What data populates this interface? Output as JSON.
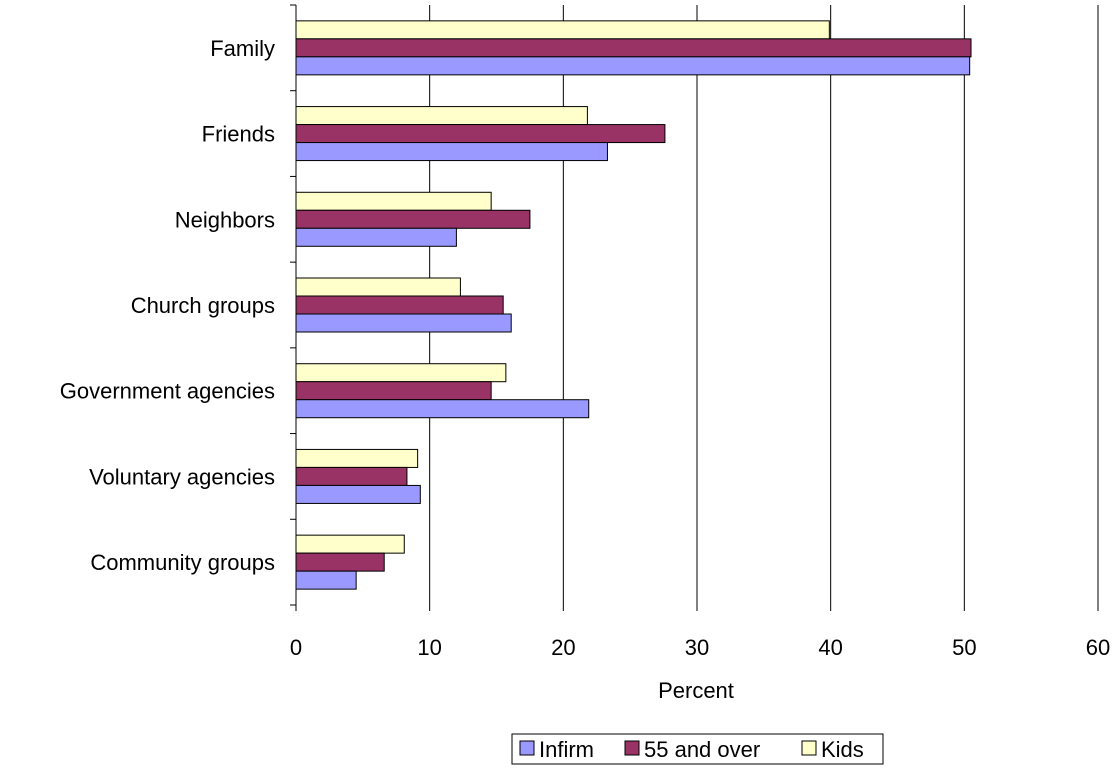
{
  "chart_data": {
    "type": "bar",
    "orientation": "horizontal",
    "title": "",
    "xlabel": "Percent",
    "ylabel": "",
    "xlim": [
      0,
      60
    ],
    "x_ticks": [
      0,
      10,
      20,
      30,
      40,
      50,
      60
    ],
    "grid": "vertical",
    "legend_position": "bottom",
    "categories": [
      "Family",
      "Friends",
      "Neighbors",
      "Church groups",
      "Government agencies",
      "Voluntary agencies",
      "Community groups"
    ],
    "series": [
      {
        "name": "Infirm",
        "color": "#9999ff",
        "values": [
          50.4,
          23.3,
          12.0,
          16.1,
          21.9,
          9.3,
          4.5
        ]
      },
      {
        "name": "55 and over",
        "color": "#993366",
        "values": [
          50.5,
          27.6,
          17.5,
          15.5,
          14.6,
          8.3,
          6.6
        ]
      },
      {
        "name": "Kids",
        "color": "#ffffcc",
        "values": [
          39.9,
          21.8,
          14.6,
          12.3,
          15.7,
          9.1,
          8.1
        ]
      }
    ]
  }
}
